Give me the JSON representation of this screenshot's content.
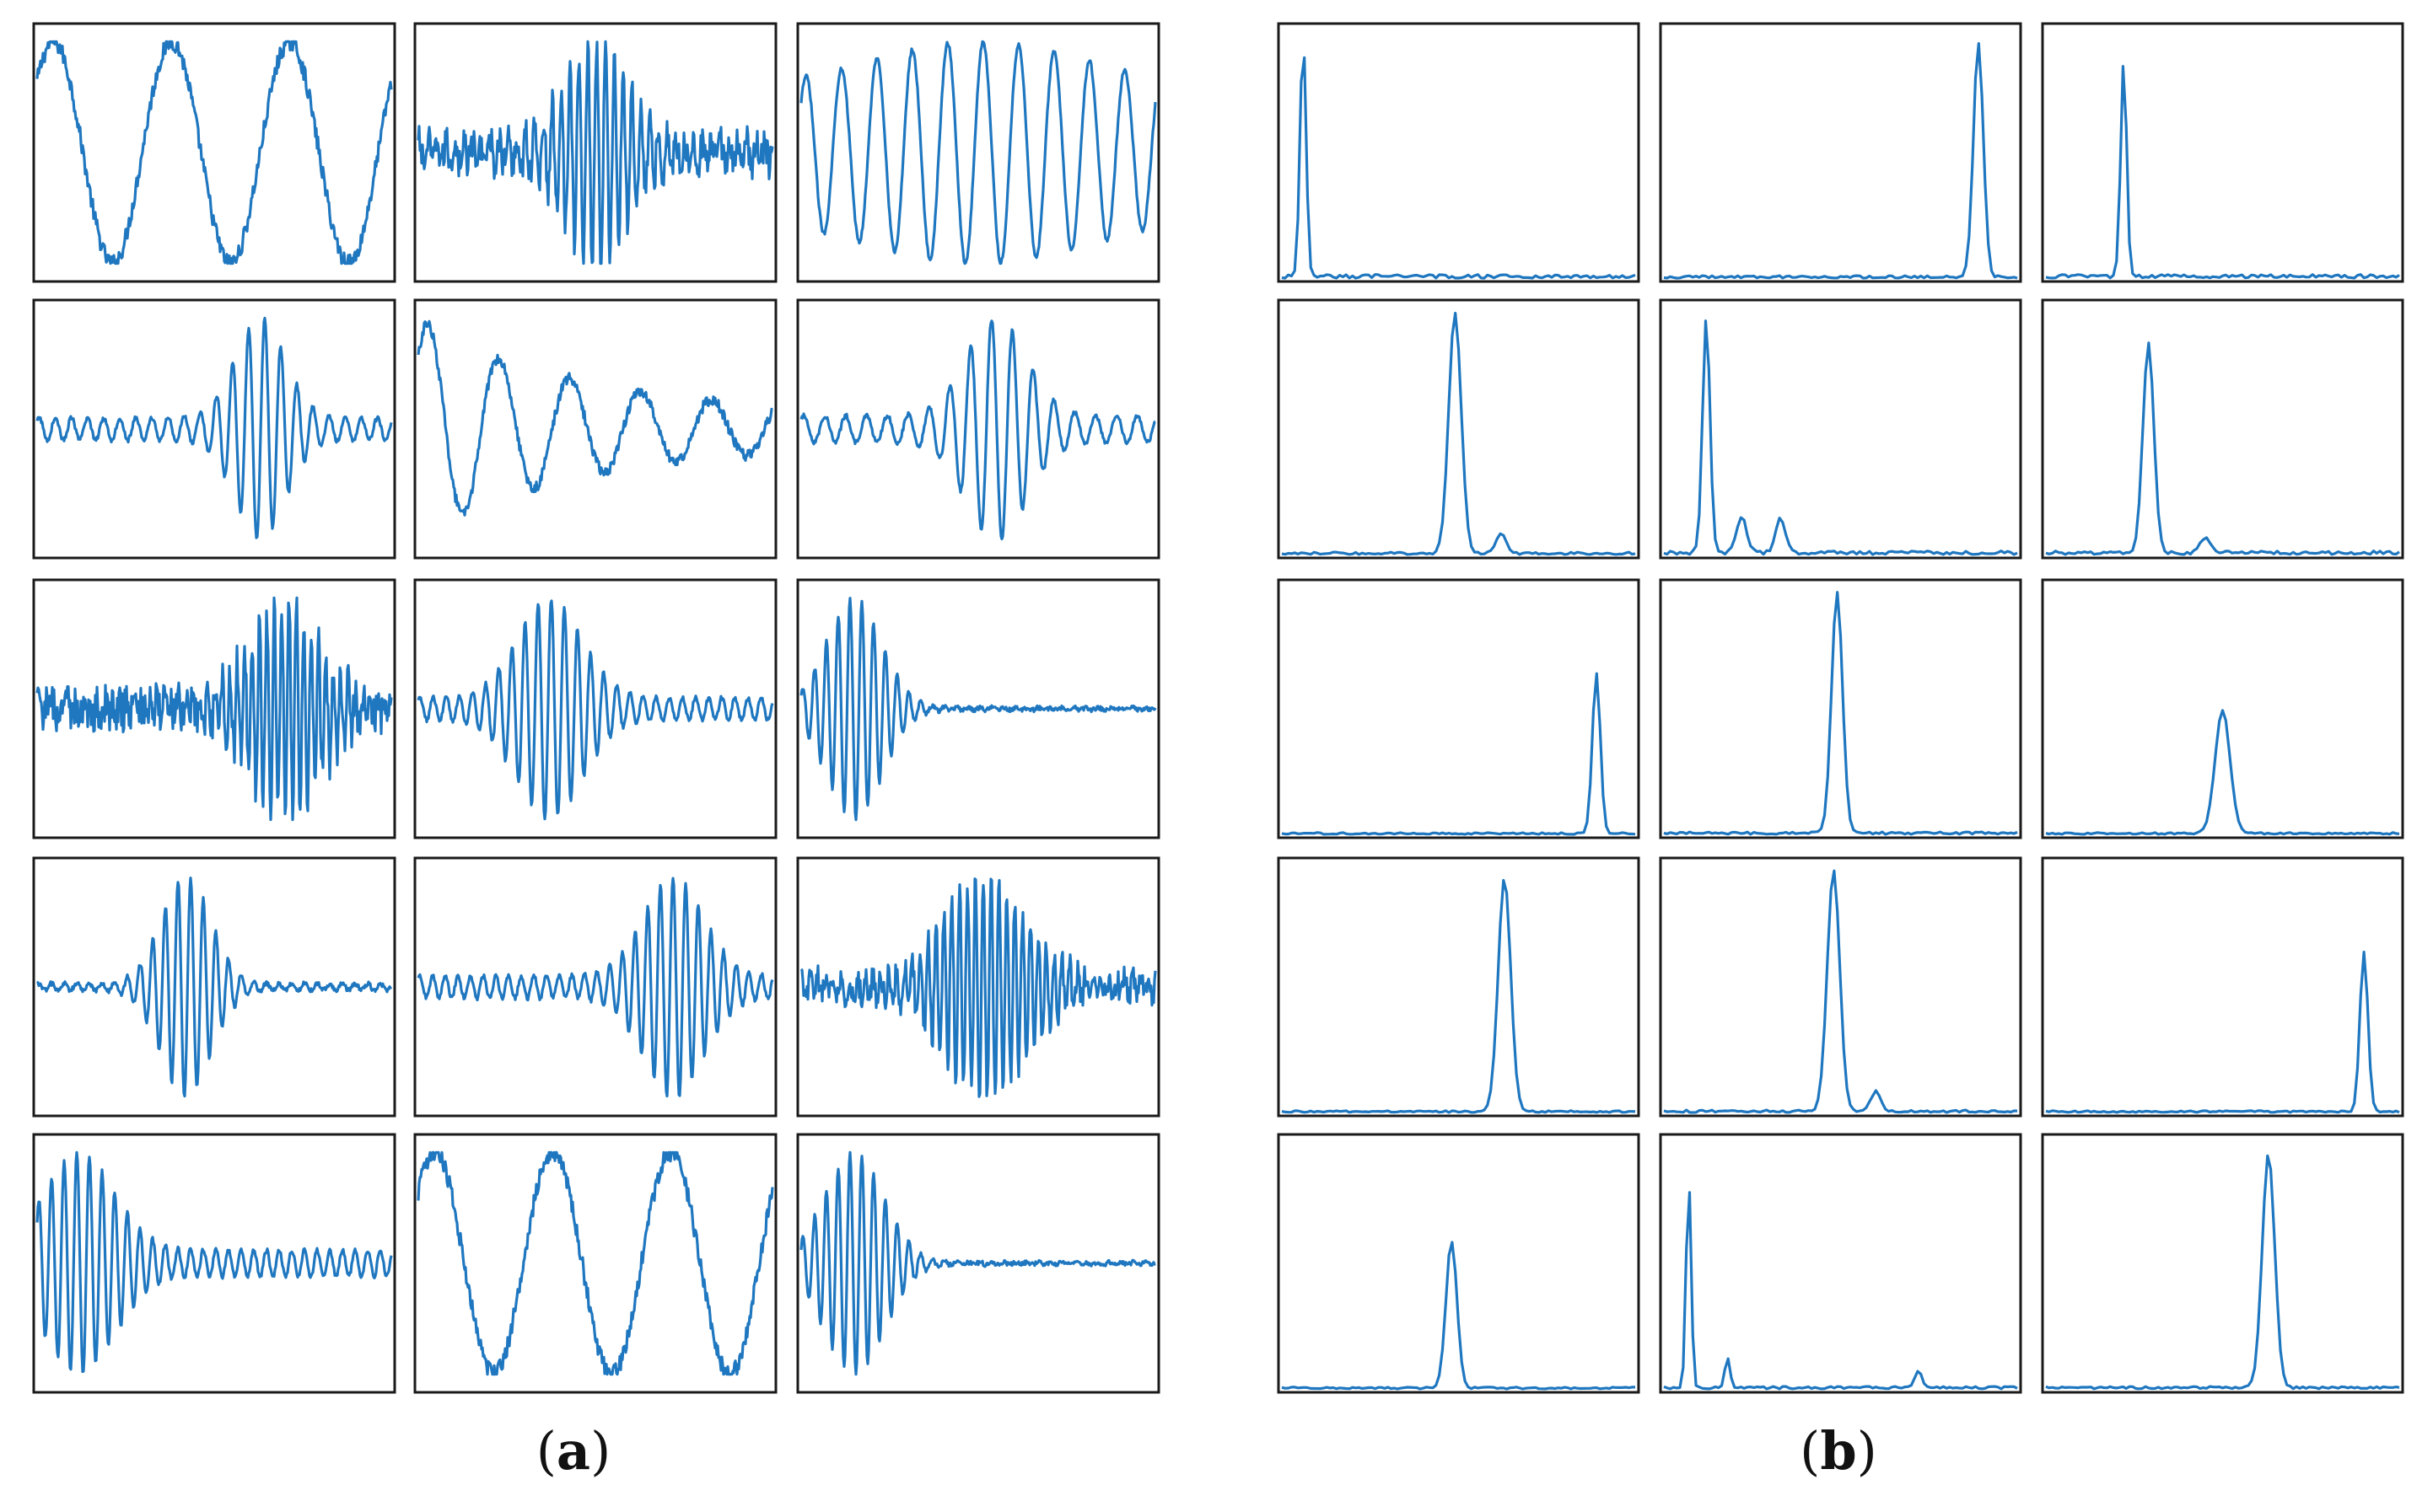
{
  "captions": {
    "a_letter": "a",
    "b_letter": "b",
    "paren_open": "(",
    "paren_close": ")"
  },
  "style": {
    "line_color": "#1f77c0",
    "frame_color": "#1a1a1a",
    "background": "#ffffff"
  },
  "chart_data": [
    {
      "panel": "a",
      "type": "line",
      "description_kind": "time-domain waveforms",
      "grid": false,
      "axes_ticks": false,
      "rows": 5,
      "cols": 3,
      "subplots": [
        {
          "row": 1,
          "col": 1,
          "shape": "low-frequency sinusoid",
          "cycles": 3,
          "envelope": "constant",
          "noise": 0.08
        },
        {
          "row": 1,
          "col": 2,
          "shape": "high-frequency burst",
          "cycles": 40,
          "envelope": "gaussian",
          "center": 0.5,
          "width": 0.12,
          "base": 0.1,
          "noise": 0.15
        },
        {
          "row": 1,
          "col": 3,
          "shape": "medium-frequency sinusoid",
          "cycles": 10,
          "envelope": "hump",
          "center": 0.5,
          "width": 0.45,
          "base": 0.55,
          "noise": 0.02
        },
        {
          "row": 2,
          "col": 1,
          "shape": "modulated burst",
          "cycles": 22,
          "envelope": "gaussian",
          "center": 0.63,
          "width": 0.1,
          "base": 0.1,
          "noise": 0.02
        },
        {
          "row": 2,
          "col": 2,
          "shape": "decaying low-frequency",
          "cycles": 5,
          "envelope": "decay",
          "decay": 1.2,
          "base": 0.15,
          "noise": 0.05
        },
        {
          "row": 2,
          "col": 3,
          "shape": "modulated burst",
          "cycles": 17,
          "envelope": "gaussian",
          "center": 0.55,
          "width": 0.12,
          "base": 0.12,
          "noise": 0.02
        },
        {
          "row": 3,
          "col": 1,
          "shape": "noisy burst",
          "cycles": 48,
          "envelope": "gaussian",
          "center": 0.7,
          "width": 0.14,
          "base": 0.05,
          "noise": 0.18
        },
        {
          "row": 3,
          "col": 2,
          "shape": "modulated burst",
          "cycles": 27,
          "envelope": "gaussian",
          "center": 0.37,
          "width": 0.13,
          "base": 0.1,
          "noise": 0.02
        },
        {
          "row": 3,
          "col": 3,
          "shape": "early burst",
          "cycles": 30,
          "envelope": "gaussian",
          "center": 0.15,
          "width": 0.11,
          "base": 0.01,
          "noise": 0.02
        },
        {
          "row": 4,
          "col": 1,
          "shape": "modulated burst",
          "cycles": 28,
          "envelope": "gaussian",
          "center": 0.42,
          "width": 0.1,
          "base": 0.03,
          "noise": 0.02
        },
        {
          "row": 4,
          "col": 2,
          "shape": "modulated burst",
          "cycles": 28,
          "envelope": "gaussian",
          "center": 0.72,
          "width": 0.12,
          "base": 0.1,
          "noise": 0.02
        },
        {
          "row": 4,
          "col": 3,
          "shape": "noisy burst",
          "cycles": 45,
          "envelope": "gaussian",
          "center": 0.52,
          "width": 0.16,
          "base": 0.08,
          "noise": 0.12
        },
        {
          "row": 5,
          "col": 1,
          "shape": "early burst",
          "cycles": 28,
          "envelope": "gaussian",
          "center": 0.12,
          "width": 0.14,
          "base": 0.12,
          "noise": 0.02
        },
        {
          "row": 5,
          "col": 2,
          "shape": "low-frequency sinusoid",
          "cycles": 3,
          "envelope": "constant",
          "noise": 0.08
        },
        {
          "row": 5,
          "col": 3,
          "shape": "early burst",
          "cycles": 30,
          "envelope": "gaussian",
          "center": 0.15,
          "width": 0.12,
          "base": 0.01,
          "noise": 0.02
        }
      ]
    },
    {
      "panel": "b",
      "type": "line",
      "description_kind": "frequency spectra",
      "grid": false,
      "axes_ticks": false,
      "rows": 5,
      "cols": 3,
      "subplots": [
        {
          "row": 1,
          "col": 1,
          "peaks": [
            {
              "pos": 0.06,
              "height": 0.98,
              "width": 0.012
            }
          ],
          "noise": 0.03
        },
        {
          "row": 1,
          "col": 2,
          "peaks": [
            {
              "pos": 0.89,
              "height": 0.95,
              "width": 0.02
            }
          ],
          "noise": 0.02
        },
        {
          "row": 1,
          "col": 3,
          "peaks": [
            {
              "pos": 0.22,
              "height": 0.88,
              "width": 0.012
            }
          ],
          "noise": 0.03
        },
        {
          "row": 2,
          "col": 1,
          "peaks": [
            {
              "pos": 0.49,
              "height": 0.98,
              "width": 0.025
            },
            {
              "pos": 0.62,
              "height": 0.08,
              "width": 0.02
            }
          ],
          "noise": 0.02
        },
        {
          "row": 2,
          "col": 2,
          "peaks": [
            {
              "pos": 0.12,
              "height": 0.95,
              "width": 0.015
            },
            {
              "pos": 0.22,
              "height": 0.15,
              "width": 0.02
            },
            {
              "pos": 0.33,
              "height": 0.14,
              "width": 0.02
            }
          ],
          "noise": 0.03
        },
        {
          "row": 2,
          "col": 3,
          "peaks": [
            {
              "pos": 0.29,
              "height": 0.85,
              "width": 0.022
            },
            {
              "pos": 0.45,
              "height": 0.06,
              "width": 0.02
            }
          ],
          "noise": 0.03
        },
        {
          "row": 3,
          "col": 1,
          "peaks": [
            {
              "pos": 0.89,
              "height": 0.65,
              "width": 0.016
            }
          ],
          "noise": 0.015
        },
        {
          "row": 3,
          "col": 2,
          "peaks": [
            {
              "pos": 0.49,
              "height": 0.98,
              "width": 0.022
            }
          ],
          "noise": 0.02
        },
        {
          "row": 3,
          "col": 3,
          "peaks": [
            {
              "pos": 0.5,
              "height": 0.5,
              "width": 0.03
            }
          ],
          "noise": 0.015
        },
        {
          "row": 4,
          "col": 1,
          "peaks": [
            {
              "pos": 0.63,
              "height": 0.95,
              "width": 0.025
            }
          ],
          "noise": 0.015
        },
        {
          "row": 4,
          "col": 2,
          "peaks": [
            {
              "pos": 0.48,
              "height": 0.98,
              "width": 0.025
            },
            {
              "pos": 0.6,
              "height": 0.08,
              "width": 0.02
            }
          ],
          "noise": 0.02
        },
        {
          "row": 4,
          "col": 3,
          "peaks": [
            {
              "pos": 0.9,
              "height": 0.65,
              "width": 0.016
            }
          ],
          "noise": 0.015
        },
        {
          "row": 5,
          "col": 1,
          "peaks": [
            {
              "pos": 0.48,
              "height": 0.6,
              "width": 0.022
            }
          ],
          "noise": 0.015
        },
        {
          "row": 5,
          "col": 2,
          "peaks": [
            {
              "pos": 0.07,
              "height": 0.85,
              "width": 0.01
            },
            {
              "pos": 0.18,
              "height": 0.12,
              "width": 0.01
            },
            {
              "pos": 0.72,
              "height": 0.07,
              "width": 0.015
            }
          ],
          "noise": 0.02
        },
        {
          "row": 5,
          "col": 3,
          "peaks": [
            {
              "pos": 0.63,
              "height": 0.95,
              "width": 0.025
            }
          ],
          "noise": 0.02
        }
      ]
    }
  ]
}
